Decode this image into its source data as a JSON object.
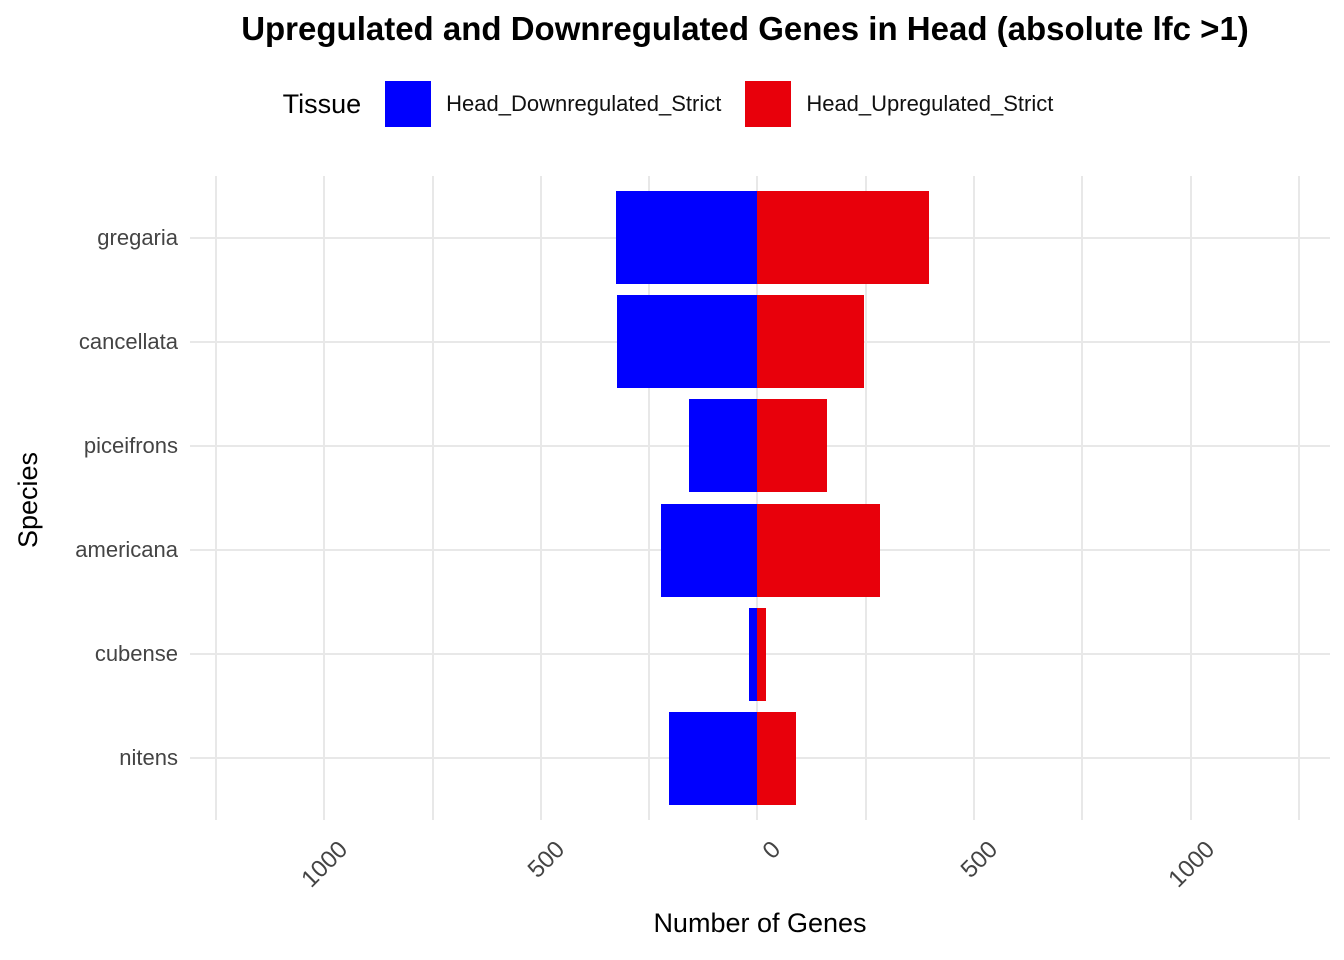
{
  "title": "Upregulated and Downregulated Genes in Head (absolute lfc >1)",
  "legend": {
    "title": "Tissue",
    "entries": [
      {
        "label": "Head_Downregulated_Strict",
        "color": "#0000FF"
      },
      {
        "label": "Head_Upregulated_Strict",
        "color": "#E8000B"
      }
    ]
  },
  "axes": {
    "xlabel": "Number of Genes",
    "ylabel": "Species"
  },
  "colors": {
    "downregulated": "#0000FF",
    "upregulated": "#E8000B",
    "gridline": "#E8E8E8",
    "tick_text": "#444444",
    "title_text": "#000000"
  },
  "chart_data": {
    "type": "bar",
    "orientation": "horizontal-diverging",
    "title": "Upregulated and Downregulated Genes in Head (absolute lfc >1)",
    "legend_title": "Tissue",
    "legend_position": "top",
    "grid": true,
    "categories": [
      "gregaria",
      "cancellata",
      "piceifrons",
      "americana",
      "cubense",
      "nitens"
    ],
    "series": [
      {
        "name": "Head_Downregulated_Strict",
        "color": "#0000FF",
        "direction": "negative",
        "values": [
          326,
          325,
          158,
          222,
          19,
          205
        ]
      },
      {
        "name": "Head_Upregulated_Strict",
        "color": "#E8000B",
        "direction": "positive",
        "values": [
          396,
          246,
          160,
          283,
          19,
          88
        ]
      }
    ],
    "xlabel": "Number of Genes",
    "ylabel": "Species",
    "xlim": [
      -1310,
      1322
    ],
    "x_ticks": {
      "values": [
        -1000,
        -500,
        0,
        500,
        1000
      ],
      "labels": [
        "1000",
        "500",
        "0",
        "500",
        "1000"
      ]
    },
    "gridline_values": [
      -1250,
      -1000,
      -750,
      -500,
      -250,
      0,
      250,
      500,
      750,
      1000,
      1250
    ]
  }
}
